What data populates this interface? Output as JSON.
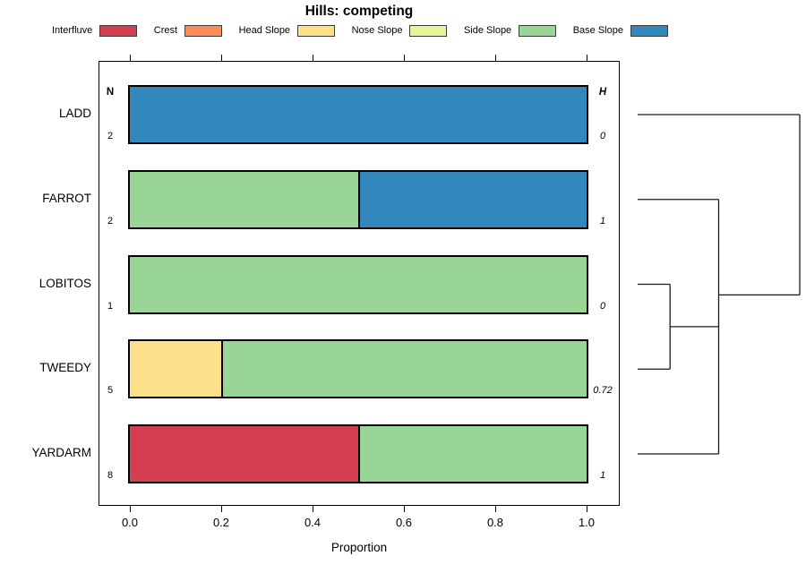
{
  "legend": [
    {
      "label": "Interfluve",
      "color": "#d53e4f"
    },
    {
      "label": "Crest",
      "color": "#fc8d59"
    },
    {
      "label": "Head Slope",
      "color": "#fee08b"
    },
    {
      "label": "Nose Slope",
      "color": "#e6f598"
    },
    {
      "label": "Side Slope",
      "color": "#99d594"
    },
    {
      "label": "Base Slope",
      "color": "#3288bd"
    }
  ],
  "row_headers": {
    "n": "N",
    "h": "H"
  },
  "chart_data": {
    "type": "bar",
    "stacked": true,
    "orientation": "horizontal",
    "title": "Hills: competing",
    "xlabel": "Proportion",
    "xlim": [
      0,
      1
    ],
    "x_ticks": [
      "0.0",
      "0.2",
      "0.4",
      "0.6",
      "0.8",
      "1.0"
    ],
    "grid": false,
    "legend_position": "top",
    "categories": [
      "LADD",
      "FARROT",
      "LOBITOS",
      "TWEEDY",
      "YARDARM"
    ],
    "rows": [
      {
        "category": "LADD",
        "n": "2",
        "h": "0",
        "segments": [
          {
            "label": "Base Slope",
            "value": 1.0
          }
        ]
      },
      {
        "category": "FARROT",
        "n": "2",
        "h": "1",
        "segments": [
          {
            "label": "Side Slope",
            "value": 0.5
          },
          {
            "label": "Base Slope",
            "value": 0.5
          }
        ]
      },
      {
        "category": "LOBITOS",
        "n": "1",
        "h": "0",
        "segments": [
          {
            "label": "Side Slope",
            "value": 1.0
          }
        ]
      },
      {
        "category": "TWEEDY",
        "n": "5",
        "h": "0.72",
        "segments": [
          {
            "label": "Head Slope",
            "value": 0.2
          },
          {
            "label": "Side Slope",
            "value": 0.8
          }
        ]
      },
      {
        "category": "YARDARM",
        "n": "8",
        "h": "1",
        "segments": [
          {
            "label": "Interfluve",
            "value": 0.5
          },
          {
            "label": "Side Slope",
            "value": 0.5
          }
        ]
      }
    ],
    "dendrogram": {
      "note": "row-cluster tree drawn right of plot, leaves at row centers, root at far right",
      "segments_row_units": [
        [
          0,
          0,
          1,
          0
        ],
        [
          0,
          1,
          0.5,
          1
        ],
        [
          0,
          2,
          0.2,
          2
        ],
        [
          0,
          3,
          0.2,
          3
        ],
        [
          0,
          4,
          0.5,
          4
        ],
        [
          0.2,
          2,
          0.2,
          3
        ],
        [
          0.2,
          2.5,
          0.5,
          2.5
        ],
        [
          0.5,
          1,
          0.5,
          4
        ],
        [
          0.5,
          2.125,
          1,
          2.125
        ],
        [
          1,
          0,
          1,
          2.125
        ]
      ]
    }
  }
}
